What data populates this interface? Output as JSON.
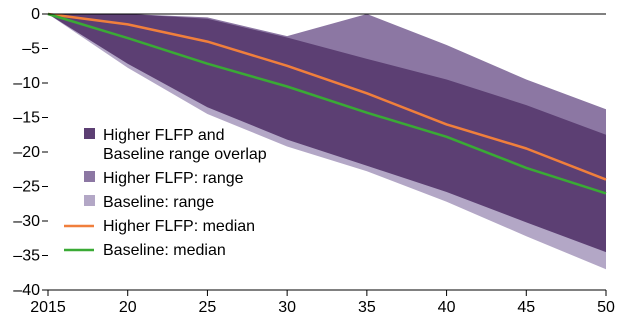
{
  "chart_data": {
    "type": "area",
    "x": [
      2015,
      2020,
      2025,
      2030,
      2035,
      2040,
      2045,
      2050
    ],
    "x_tick_labels": [
      "2015",
      "20",
      "25",
      "30",
      "35",
      "40",
      "45",
      "50"
    ],
    "y_tick_labels": [
      "0",
      "–5",
      "–10",
      "–15",
      "–20",
      "–25",
      "–30",
      "–35",
      "–40"
    ],
    "y_ticks": [
      0,
      -5,
      -10,
      -15,
      -20,
      -25,
      -30,
      -35,
      -40
    ],
    "xlim": [
      2015,
      2050
    ],
    "ylim": [
      -40,
      0
    ],
    "grid": false,
    "legend_position": "left",
    "series": [
      {
        "name": "Higher FLFP: median",
        "kind": "line",
        "color": "#f07f3c",
        "values": [
          0,
          -1.5,
          -4,
          -7.5,
          -11.5,
          -16,
          -19.5,
          -24
        ]
      },
      {
        "name": "Baseline: median",
        "kind": "line",
        "color": "#3aaa35",
        "values": [
          0,
          -3.5,
          -7.2,
          -10.5,
          -14.3,
          -17.8,
          -22.3,
          -26
        ]
      }
    ],
    "ranges": [
      {
        "name": "Higher FLFP: range",
        "color": "#8c77a3",
        "upper": [
          0,
          0,
          -0.5,
          -3.2,
          0,
          -4.5,
          -9.5,
          -13.8
        ],
        "lower": [
          0,
          -3.5,
          -6.8,
          -9.8,
          -13.3,
          -17.2,
          -21.5,
          -25.5
        ]
      },
      {
        "name": "Baseline: range",
        "color": "#b3a7c6",
        "upper": [
          0,
          -0.5,
          -6.5,
          -9.5,
          -13,
          -16.8,
          -21.8,
          -25.5
        ],
        "lower": [
          0,
          -7.8,
          -14.5,
          -19.2,
          -22.8,
          -27.2,
          -32.2,
          -37
        ]
      },
      {
        "name": "Higher FLFP and Baseline range overlap",
        "color": "#5c3f73",
        "upper": [
          0,
          0,
          -0.7,
          -3.4,
          -6.5,
          -9.5,
          -13.2,
          -17.5
        ],
        "lower": [
          0,
          -7.2,
          -13.5,
          -18.2,
          -22,
          -25.8,
          -30.2,
          -34.5
        ]
      }
    ],
    "legend": [
      {
        "label_lines": [
          "Higher FLFP and",
          "Baseline range overlap"
        ],
        "marker": "box",
        "color": "#5c3f73"
      },
      {
        "label_lines": [
          "Higher FLFP: range"
        ],
        "marker": "box",
        "color": "#8c77a3"
      },
      {
        "label_lines": [
          "Baseline: range"
        ],
        "marker": "box",
        "color": "#b3a7c6"
      },
      {
        "label_lines": [
          "Higher FLFP: median"
        ],
        "marker": "line",
        "color": "#f07f3c"
      },
      {
        "label_lines": [
          "Baseline: median"
        ],
        "marker": "line",
        "color": "#3aaa35"
      }
    ]
  }
}
